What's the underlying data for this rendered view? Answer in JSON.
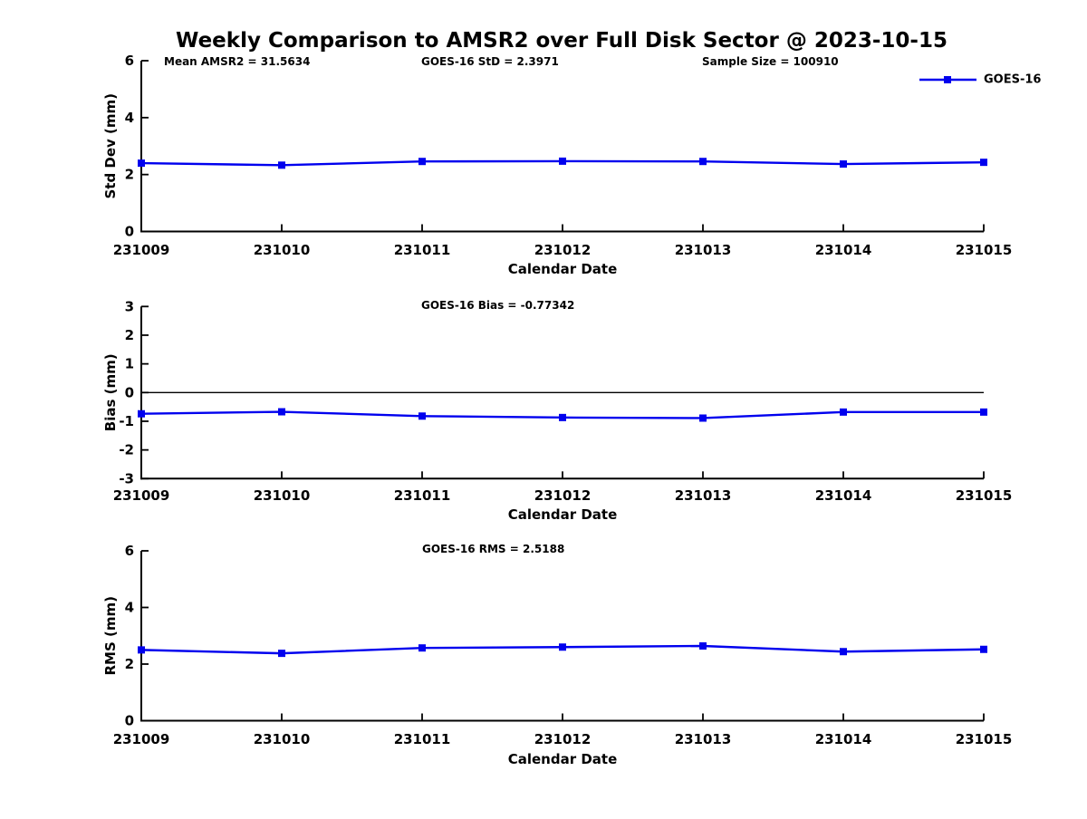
{
  "title": "Weekly Comparison to AMSR2 over Full Disk Sector @ 2023-10-15",
  "legend": {
    "label": "GOES-16",
    "color": "#0000EE"
  },
  "chart_data": [
    {
      "type": "line",
      "name": "std-dev-subplot",
      "ylabel": "Std Dev (mm)",
      "xlabel": "Calendar Date",
      "categories": [
        "231009",
        "231010",
        "231011",
        "231012",
        "231013",
        "231014",
        "231015"
      ],
      "series": [
        {
          "name": "GOES-16",
          "color": "#0000EE",
          "marker": "square",
          "values": [
            2.4,
            2.33,
            2.46,
            2.47,
            2.46,
            2.37,
            2.43
          ]
        }
      ],
      "ylim": [
        0,
        6
      ],
      "yticks": [
        0,
        2,
        4,
        6
      ],
      "zero_line": false,
      "grid": false,
      "annotations": [
        "Mean AMSR2 = 31.5634",
        "GOES-16 StD = 2.3971",
        "Sample Size = 100910"
      ]
    },
    {
      "type": "line",
      "name": "bias-subplot",
      "ylabel": "Bias (mm)",
      "xlabel": "Calendar Date",
      "categories": [
        "231009",
        "231010",
        "231011",
        "231012",
        "231013",
        "231014",
        "231015"
      ],
      "series": [
        {
          "name": "GOES-16",
          "color": "#0000EE",
          "marker": "square",
          "values": [
            -0.74,
            -0.67,
            -0.82,
            -0.87,
            -0.89,
            -0.68,
            -0.68
          ]
        }
      ],
      "ylim": [
        -3,
        3
      ],
      "yticks": [
        -3,
        -2,
        -1,
        0,
        1,
        2,
        3
      ],
      "zero_line": true,
      "grid": false,
      "annotations": [
        "GOES-16 Bias  = -0.77342"
      ]
    },
    {
      "type": "line",
      "name": "rms-subplot",
      "ylabel": "RMS (mm)",
      "xlabel": "Calendar Date",
      "categories": [
        "231009",
        "231010",
        "231011",
        "231012",
        "231013",
        "231014",
        "231015"
      ],
      "series": [
        {
          "name": "GOES-16",
          "color": "#0000EE",
          "marker": "square",
          "values": [
            2.5,
            2.38,
            2.57,
            2.6,
            2.64,
            2.44,
            2.52
          ]
        }
      ],
      "ylim": [
        0,
        6
      ],
      "yticks": [
        0,
        2,
        4,
        6
      ],
      "zero_line": false,
      "grid": false,
      "annotations": [
        "GOES-16 RMS = 2.5188"
      ]
    }
  ]
}
